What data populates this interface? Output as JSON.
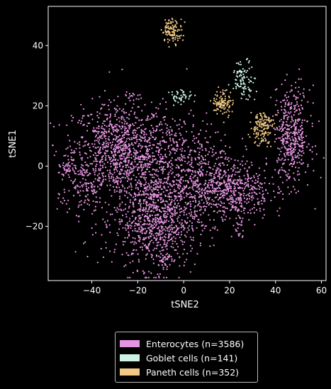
{
  "chart_data": {
    "type": "scatter",
    "xlabel": "tSNE2",
    "ylabel": "tSNE1",
    "xlim": [
      -59,
      62
    ],
    "ylim": [
      -38,
      53
    ],
    "xticks": [
      -40,
      -20,
      0,
      20,
      40,
      60
    ],
    "yticks": [
      -20,
      0,
      20,
      40
    ],
    "grid": false,
    "legend_position": "below",
    "series": [
      {
        "name": "Enterocytes (n=3586)",
        "color": "#e695e2",
        "count": 3586,
        "clusters": [
          {
            "cx": -28,
            "cy": 5,
            "sx": 10,
            "sy": 8,
            "n": 900
          },
          {
            "cx": -12,
            "cy": -18,
            "sx": 9,
            "sy": 8,
            "n": 850
          },
          {
            "cx": -3,
            "cy": 0,
            "sx": 12,
            "sy": 9,
            "n": 600
          },
          {
            "cx": 20,
            "cy": -8,
            "sx": 9,
            "sy": 5,
            "n": 550
          },
          {
            "cx": 47,
            "cy": 10,
            "sx": 4,
            "sy": 8,
            "n": 450
          },
          {
            "cx": -45,
            "cy": -6,
            "sx": 5,
            "sy": 8,
            "n": 150
          },
          {
            "cx": -8,
            "cy": -31,
            "sx": 1.5,
            "sy": 1,
            "n": 30
          },
          {
            "cx": 24,
            "cy": -20,
            "sx": 1,
            "sy": 2,
            "n": 20
          },
          {
            "cx": -23,
            "cy": 23,
            "sx": 1,
            "sy": 1,
            "n": 10
          },
          {
            "cx": -51,
            "cy": -1,
            "sx": 1.5,
            "sy": 1,
            "n": 26
          }
        ]
      },
      {
        "name": "Goblet cells (n=141)",
        "color": "#ccf2e6",
        "count": 141,
        "clusters": [
          {
            "cx": 26,
            "cy": 29,
            "sx": 2.5,
            "sy": 3,
            "n": 95
          },
          {
            "cx": -1,
            "cy": 23,
            "sx": 2.5,
            "sy": 1.2,
            "n": 46
          }
        ]
      },
      {
        "name": "Paneth cells (n=352)",
        "color": "#f0c985",
        "count": 352,
        "clusters": [
          {
            "cx": -5,
            "cy": 45,
            "sx": 2.2,
            "sy": 2,
            "n": 110
          },
          {
            "cx": 17,
            "cy": 21,
            "sx": 2.2,
            "sy": 2.2,
            "n": 100
          },
          {
            "cx": 34,
            "cy": 13,
            "sx": 2.5,
            "sy": 3,
            "n": 142
          }
        ]
      }
    ]
  }
}
